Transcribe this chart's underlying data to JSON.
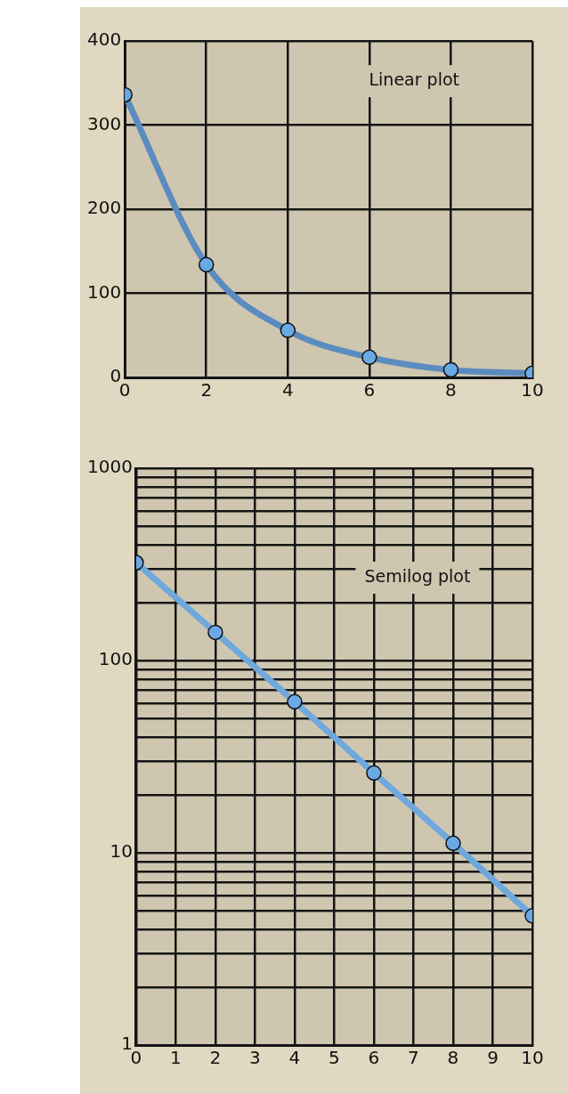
{
  "chart_data": [
    {
      "type": "line",
      "x": [
        0,
        2,
        4,
        6,
        8,
        10
      ],
      "series": [
        {
          "color": "#5b8cbf",
          "values": [
            336,
            134,
            56,
            24,
            9,
            5
          ]
        }
      ],
      "xlim": [
        0,
        10
      ],
      "xticks": [
        0,
        2,
        4,
        6,
        8,
        10
      ],
      "ylim": [
        0,
        400
      ],
      "yticks": [
        0,
        100,
        200,
        300,
        400
      ],
      "grid": true,
      "marker": "circle",
      "line_style": "solid",
      "legend": false,
      "annotations": [
        "Linear plot"
      ]
    },
    {
      "type": "line",
      "x": [
        0,
        2,
        4,
        6,
        8,
        10
      ],
      "series": [
        {
          "color": "#6fa8dc",
          "values": [
            323,
            140,
            61,
            26,
            11.2,
            4.7
          ]
        }
      ],
      "log": "y",
      "xlim": [
        0,
        10
      ],
      "xticks": [
        0,
        1,
        2,
        3,
        4,
        5,
        6,
        7,
        8,
        9,
        10
      ],
      "ylim": [
        1,
        1000
      ],
      "yticks": [
        1,
        {
          "value": 2,
          "label": null
        },
        {
          "value": 3,
          "label": null
        },
        {
          "value": 4,
          "label": null
        },
        {
          "value": 5,
          "label": null
        },
        {
          "value": 6,
          "label": null
        },
        {
          "value": 7,
          "label": null
        },
        {
          "value": 8,
          "label": null
        },
        {
          "value": 9,
          "label": null
        },
        10,
        {
          "value": 20,
          "label": null
        },
        {
          "value": 30,
          "label": null
        },
        {
          "value": 40,
          "label": null
        },
        {
          "value": 50,
          "label": null
        },
        {
          "value": 60,
          "label": null
        },
        {
          "value": 70,
          "label": null
        },
        {
          "value": 80,
          "label": null
        },
        {
          "value": 90,
          "label": null
        },
        100,
        {
          "value": 200,
          "label": null
        },
        {
          "value": 300,
          "label": null
        },
        {
          "value": 400,
          "label": null
        },
        {
          "value": 500,
          "label": null
        },
        {
          "value": 600,
          "label": null
        },
        {
          "value": 700,
          "label": null
        },
        {
          "value": 800,
          "label": null
        },
        {
          "value": 900,
          "label": null
        },
        1000
      ],
      "grid": true,
      "marker": "circle",
      "line_style": "solid",
      "legend": false,
      "annotations": [
        "Semilog plot"
      ]
    }
  ]
}
